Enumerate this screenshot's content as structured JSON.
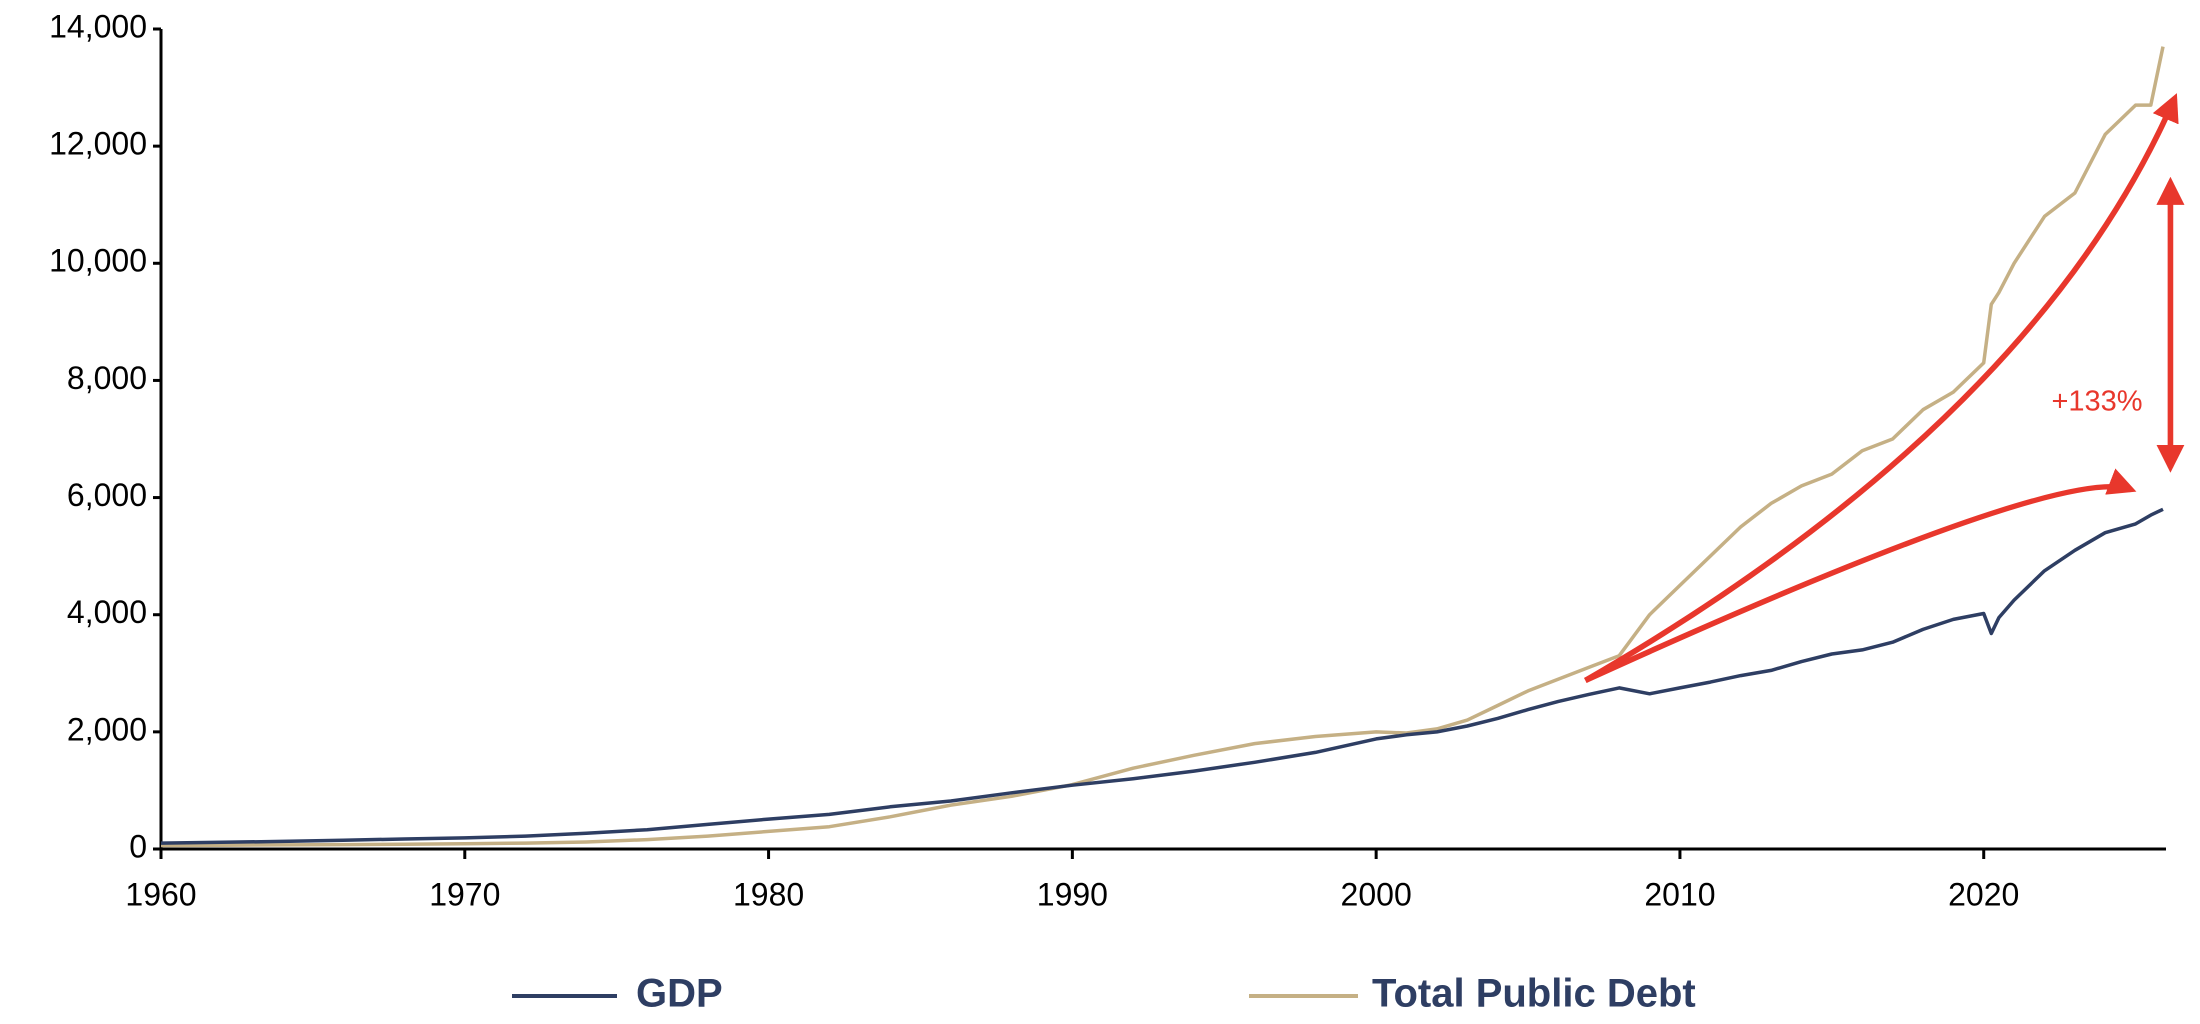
{
  "chart_data": {
    "type": "line",
    "x": [
      1960,
      1962,
      1964,
      1966,
      1968,
      1970,
      1972,
      1974,
      1976,
      1978,
      1980,
      1982,
      1984,
      1986,
      1988,
      1990,
      1992,
      1994,
      1996,
      1998,
      2000,
      2001,
      2002,
      2003,
      2004,
      2005,
      2006,
      2007,
      2008,
      2009,
      2010,
      2011,
      2012,
      2013,
      2014,
      2015,
      2016,
      2017,
      2018,
      2019,
      2020,
      2020.25,
      2020.5,
      2021,
      2022,
      2023,
      2024,
      2025,
      2025.5,
      2025.9
    ],
    "series": [
      {
        "name": "GDP",
        "color": "#2e3e63",
        "values": [
          100,
          115,
          130,
          150,
          170,
          190,
          220,
          270,
          330,
          420,
          510,
          590,
          720,
          820,
          960,
          1090,
          1200,
          1330,
          1480,
          1650,
          1880,
          1950,
          2000,
          2100,
          2230,
          2380,
          2520,
          2640,
          2750,
          2650,
          2750,
          2850,
          2960,
          3050,
          3200,
          3330,
          3400,
          3530,
          3750,
          3920,
          4020,
          3680,
          3950,
          4250,
          4750,
          5100,
          5400,
          5550,
          5700,
          5800
        ]
      },
      {
        "name": "Total Public Debt",
        "color": "#c5b085",
        "values": [
          60,
          65,
          70,
          75,
          80,
          90,
          100,
          120,
          160,
          220,
          300,
          380,
          550,
          750,
          900,
          1100,
          1380,
          1600,
          1800,
          1920,
          2000,
          1980,
          2050,
          2200,
          2450,
          2700,
          2900,
          3100,
          3300,
          4000,
          4500,
          5000,
          5500,
          5900,
          6200,
          6400,
          6800,
          7000,
          7500,
          7800,
          8300,
          9300,
          9500,
          10000,
          10800,
          11200,
          12200,
          12700,
          12700,
          13700
        ]
      }
    ],
    "xlim": [
      1960,
      2026
    ],
    "xticks": [
      1960,
      1970,
      1980,
      1990,
      2000,
      2010,
      2020
    ],
    "ylim": [
      0,
      14000
    ],
    "yticks": [
      0,
      {
        "value": 2000,
        "label": "2,000"
      },
      {
        "value": 4000,
        "label": "4,000"
      },
      {
        "value": 6000,
        "label": "6,000"
      },
      {
        "value": 8000,
        "label": "8,000"
      },
      {
        "value": 10000,
        "label": "10,000"
      },
      {
        "value": 12000,
        "label": "12,000"
      },
      {
        "value": 14000,
        "label": "14,000"
      }
    ],
    "grid": false,
    "annotation": "+133%"
  }
}
